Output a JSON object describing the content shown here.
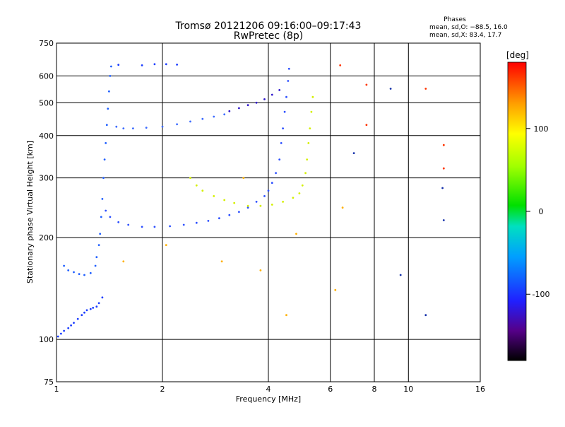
{
  "chart_data": {
    "type": "scatter",
    "title": "Tromsø 20121206 09:16:00–09:17:43",
    "subtitle": "RwPretec (8p)",
    "stats": {
      "heading": "Phases",
      "line_o": "mean, sd,O: −88.5, 16.0",
      "line_x": "mean, sd,X:  83.4, 17.7"
    },
    "xlabel": "Frequency [MHz]",
    "ylabel": "Stationary phase Virtual Height [km]",
    "x_scale": "log",
    "y_scale": "log",
    "xlim": [
      1,
      16
    ],
    "ylim": [
      75,
      750
    ],
    "x_ticks": [
      1,
      2,
      4,
      6,
      8,
      10,
      16
    ],
    "y_ticks": [
      75,
      100,
      200,
      300,
      400,
      500,
      600,
      750
    ],
    "x_grid": [
      2,
      4,
      6,
      8,
      10
    ],
    "y_grid": [
      100,
      200,
      300,
      400,
      500,
      600
    ],
    "grid": true,
    "colorbar": {
      "label": "[deg]",
      "range": [
        -180,
        180
      ],
      "ticks": [
        100,
        0,
        -100
      ]
    },
    "series": [
      {
        "color": "#1a3cff",
        "points": [
          [
            1.01,
            102
          ],
          [
            1.03,
            104
          ],
          [
            1.05,
            106
          ],
          [
            1.08,
            108
          ],
          [
            1.1,
            110
          ],
          [
            1.12,
            112
          ],
          [
            1.15,
            115
          ],
          [
            1.18,
            118
          ],
          [
            1.2,
            120
          ],
          [
            1.22,
            122
          ],
          [
            1.25,
            123
          ],
          [
            1.27,
            124
          ],
          [
            1.3,
            125
          ],
          [
            1.32,
            128
          ],
          [
            1.35,
            133
          ]
        ]
      },
      {
        "color": "#1f5fff",
        "points": [
          [
            1.05,
            165
          ],
          [
            1.08,
            160
          ],
          [
            1.12,
            158
          ],
          [
            1.16,
            156
          ],
          [
            1.2,
            155
          ],
          [
            1.25,
            157
          ],
          [
            1.29,
            165
          ],
          [
            1.3,
            175
          ],
          [
            1.32,
            190
          ],
          [
            1.33,
            205
          ],
          [
            1.34,
            230
          ],
          [
            1.35,
            260
          ],
          [
            1.36,
            300
          ],
          [
            1.37,
            340
          ],
          [
            1.38,
            380
          ],
          [
            1.39,
            430
          ],
          [
            1.4,
            480
          ],
          [
            1.41,
            540
          ],
          [
            1.42,
            600
          ],
          [
            1.43,
            640
          ]
        ]
      },
      {
        "color": "#2d50ff",
        "points": [
          [
            1.38,
            240
          ],
          [
            1.42,
            230
          ],
          [
            1.5,
            222
          ],
          [
            1.6,
            218
          ],
          [
            1.75,
            215
          ],
          [
            1.9,
            215
          ],
          [
            2.1,
            216
          ],
          [
            2.3,
            218
          ],
          [
            2.5,
            221
          ],
          [
            2.7,
            224
          ],
          [
            2.9,
            228
          ],
          [
            3.1,
            233
          ],
          [
            3.3,
            238
          ],
          [
            3.5,
            245
          ],
          [
            3.7,
            255
          ],
          [
            3.9,
            265
          ],
          [
            4.0,
            275
          ],
          [
            4.1,
            290
          ],
          [
            4.2,
            310
          ],
          [
            4.3,
            340
          ],
          [
            4.35,
            380
          ],
          [
            4.4,
            420
          ],
          [
            4.45,
            470
          ],
          [
            4.5,
            520
          ],
          [
            4.55,
            580
          ],
          [
            4.58,
            630
          ]
        ]
      },
      {
        "color": "#3c6bff",
        "points": [
          [
            1.48,
            425
          ],
          [
            1.55,
            420
          ],
          [
            1.65,
            420
          ],
          [
            1.8,
            422
          ],
          [
            2.0,
            425
          ],
          [
            2.2,
            432
          ],
          [
            2.4,
            440
          ],
          [
            2.6,
            448
          ],
          [
            2.8,
            455
          ],
          [
            3.0,
            462
          ]
        ]
      },
      {
        "color": "#3018cc",
        "points": [
          [
            3.1,
            472
          ],
          [
            3.3,
            482
          ],
          [
            3.5,
            492
          ],
          [
            3.7,
            500
          ],
          [
            3.9,
            512
          ],
          [
            4.1,
            528
          ],
          [
            4.3,
            545
          ]
        ]
      },
      {
        "color": "#d4f000",
        "points": [
          [
            2.4,
            300
          ],
          [
            2.5,
            285
          ],
          [
            2.6,
            275
          ],
          [
            2.8,
            265
          ],
          [
            3.0,
            258
          ],
          [
            3.2,
            253
          ],
          [
            3.5,
            248
          ],
          [
            3.8,
            248
          ],
          [
            4.1,
            250
          ],
          [
            4.4,
            255
          ],
          [
            4.7,
            262
          ],
          [
            4.9,
            270
          ],
          [
            5.0,
            285
          ],
          [
            5.1,
            310
          ],
          [
            5.15,
            340
          ],
          [
            5.2,
            380
          ],
          [
            5.25,
            420
          ],
          [
            5.3,
            470
          ],
          [
            5.35,
            520
          ]
        ]
      },
      {
        "color": "#1a3cff",
        "points": [
          [
            1.5,
            647
          ],
          [
            1.75,
            645
          ],
          [
            1.9,
            650
          ],
          [
            2.05,
            650
          ],
          [
            2.2,
            648
          ]
        ]
      },
      {
        "color": "#ff3300",
        "points": [
          [
            6.4,
            645
          ],
          [
            7.6,
            565
          ],
          [
            11.2,
            550
          ],
          [
            12.6,
            375
          ],
          [
            12.6,
            320
          ],
          [
            7.6,
            430
          ]
        ]
      },
      {
        "color": "#1430aa",
        "points": [
          [
            7.0,
            355
          ],
          [
            8.9,
            550
          ],
          [
            9.5,
            155
          ],
          [
            11.2,
            118
          ],
          [
            12.5,
            280
          ],
          [
            12.6,
            225
          ]
        ]
      },
      {
        "color": "#ffb000",
        "points": [
          [
            1.55,
            170
          ],
          [
            2.05,
            190
          ],
          [
            2.95,
            170
          ],
          [
            3.4,
            300
          ],
          [
            3.8,
            160
          ],
          [
            4.5,
            118
          ],
          [
            4.8,
            205
          ],
          [
            6.2,
            140
          ],
          [
            6.5,
            245
          ]
        ]
      }
    ]
  }
}
